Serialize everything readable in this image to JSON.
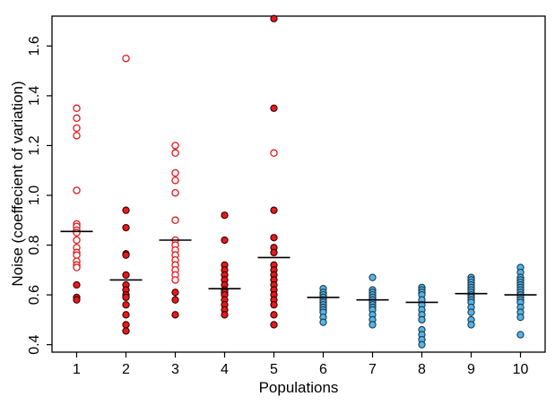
{
  "chart_data": {
    "type": "scatter",
    "xlabel": "Populations",
    "ylabel": "Noise (coeffecient of variation)",
    "title": "",
    "ylim": [
      0.37,
      1.72
    ],
    "xlim": [
      0.5,
      10.5
    ],
    "y_ticks": [
      0.4,
      0.6,
      0.8,
      1.0,
      1.2,
      1.4,
      1.6
    ],
    "y_tick_labels": [
      "0.4",
      "0.6",
      "0.8",
      "1.0",
      "1.2",
      "1.4",
      "1.6"
    ],
    "x_ticks": [
      1,
      2,
      3,
      4,
      5,
      6,
      7,
      8,
      9,
      10
    ],
    "x_tick_labels": [
      "1",
      "2",
      "3",
      "4",
      "5",
      "6",
      "7",
      "8",
      "9",
      "10"
    ],
    "grid": false,
    "legend": "none",
    "colors": {
      "red_fill": "#e41a1c",
      "red_edge": "#3a0000",
      "blue_fill": "#56b4e9",
      "blue_edge": "#1b3a4b",
      "open_edge": "#e41a1c",
      "median": "#000000"
    },
    "groups": [
      {
        "x": 1,
        "median": 0.855,
        "open": [
          1.35,
          1.31,
          1.27,
          1.24,
          1.02,
          0.885,
          0.875,
          0.86,
          0.85,
          0.82,
          0.79,
          0.77,
          0.76,
          0.735,
          0.72,
          0.71
        ],
        "filled_red": [
          0.64,
          0.59,
          0.58
        ],
        "filled_blue": []
      },
      {
        "x": 2,
        "median": 0.66,
        "open": [
          1.55
        ],
        "filled_red": [
          0.94,
          0.87,
          0.765,
          0.76,
          0.68,
          0.64,
          0.62,
          0.6,
          0.59,
          0.56,
          0.52,
          0.48,
          0.455
        ],
        "filled_blue": []
      },
      {
        "x": 3,
        "median": 0.82,
        "open": [
          1.2,
          1.17,
          1.09,
          1.06,
          1.01,
          0.9,
          0.82,
          0.8,
          0.78,
          0.76,
          0.74,
          0.72,
          0.7,
          0.68,
          0.66
        ],
        "filled_red": [
          0.61,
          0.58,
          0.52
        ],
        "filled_blue": []
      },
      {
        "x": 4,
        "median": 0.625,
        "open": [],
        "filled_red": [
          0.92,
          0.82,
          0.72,
          0.7,
          0.68,
          0.66,
          0.64,
          0.62,
          0.61,
          0.6,
          0.58,
          0.56,
          0.54,
          0.52
        ],
        "filled_blue": []
      },
      {
        "x": 5,
        "median": 0.75,
        "open": [
          1.17
        ],
        "filled_red": [
          1.71,
          1.35,
          0.94,
          0.83,
          0.79,
          0.77,
          0.72,
          0.7,
          0.68,
          0.66,
          0.64,
          0.62,
          0.6,
          0.58,
          0.56,
          0.52,
          0.48
        ],
        "filled_blue": []
      },
      {
        "x": 6,
        "median": 0.59,
        "open": [],
        "filled_red": [],
        "filled_blue": [
          0.625,
          0.61,
          0.6,
          0.59,
          0.58,
          0.57,
          0.56,
          0.55,
          0.54,
          0.53,
          0.51,
          0.49
        ]
      },
      {
        "x": 7,
        "median": 0.58,
        "open": [],
        "filled_red": [],
        "filled_blue": [
          0.67,
          0.62,
          0.61,
          0.6,
          0.59,
          0.58,
          0.57,
          0.56,
          0.55,
          0.54,
          0.52,
          0.5,
          0.48
        ]
      },
      {
        "x": 8,
        "median": 0.57,
        "open": [],
        "filled_red": [],
        "filled_blue": [
          0.63,
          0.62,
          0.61,
          0.6,
          0.58,
          0.56,
          0.54,
          0.52,
          0.5,
          0.46,
          0.44,
          0.42,
          0.4
        ]
      },
      {
        "x": 9,
        "median": 0.605,
        "open": [],
        "filled_red": [],
        "filled_blue": [
          0.67,
          0.66,
          0.65,
          0.64,
          0.63,
          0.62,
          0.61,
          0.6,
          0.59,
          0.58,
          0.57,
          0.55,
          0.53,
          0.5,
          0.48
        ]
      },
      {
        "x": 10,
        "median": 0.6,
        "open": [],
        "filled_red": [],
        "filled_blue": [
          0.71,
          0.69,
          0.67,
          0.66,
          0.65,
          0.64,
          0.63,
          0.62,
          0.61,
          0.6,
          0.59,
          0.58,
          0.57,
          0.55,
          0.53,
          0.51,
          0.44
        ]
      }
    ]
  }
}
